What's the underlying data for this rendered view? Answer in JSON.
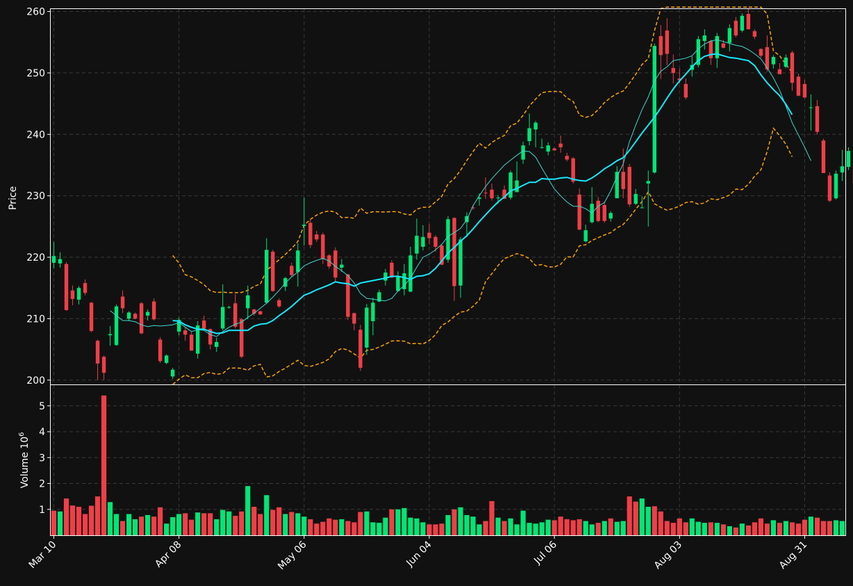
{
  "chart_data": [
    {
      "type": "candlestick",
      "panel": "price",
      "ylabel": "Price",
      "ylim": [
        199.3,
        260.4
      ],
      "yticks": [
        200,
        210,
        220,
        230,
        240,
        250,
        260
      ],
      "xlim": [
        -0.5,
        126.5
      ],
      "xtick_labels": [
        "Mar 10",
        "Apr 08",
        "May 06",
        "Jun 04",
        "Jul 06",
        "Aug 03",
        "Aug 31"
      ],
      "xtick_index": [
        0,
        20,
        40,
        60,
        80,
        100,
        120
      ],
      "grid": true,
      "colors": {
        "up": "#00e676",
        "down": "#ef3f48",
        "ma_fast": "#3fd9d0",
        "ma_slow": "#17e8ff",
        "bands": "#ffa500",
        "axes": "#ffffff",
        "grid": "#3a3a3a",
        "background": "#111111"
      },
      "candles": [
        [
          219.1,
          220.2,
          218.2,
          222.5
        ],
        [
          219.0,
          219.7,
          218.3,
          220.8
        ],
        [
          218.9,
          211.4,
          211.3,
          219.2
        ],
        [
          214.6,
          213.2,
          212.2,
          215.4
        ],
        [
          213.1,
          215.0,
          212.3,
          215.3
        ],
        [
          215.8,
          214.2,
          213.8,
          216.4
        ],
        [
          212.6,
          208.0,
          207.8,
          212.7
        ],
        [
          206.4,
          202.7,
          200.0,
          206.6
        ],
        [
          203.8,
          201.2,
          200.0,
          204.0
        ],
        [
          207.3,
          207.5,
          205.6,
          208.8
        ],
        [
          205.7,
          212.0,
          205.6,
          212.3
        ],
        [
          213.6,
          211.7,
          210.9,
          214.6
        ],
        [
          210.0,
          211.0,
          209.6,
          211.2
        ],
        [
          210.8,
          210.0,
          209.9,
          211.0
        ],
        [
          212.5,
          207.6,
          207.5,
          212.7
        ],
        [
          210.5,
          211.1,
          209.7,
          211.5
        ],
        [
          212.8,
          209.9,
          209.7,
          213.3
        ],
        [
          206.6,
          203.1,
          202.8,
          207.0
        ],
        [
          202.8,
          204.0,
          202.6,
          204.2
        ],
        [
          200.6,
          201.7,
          200.2,
          202.0
        ],
        [
          207.9,
          209.8,
          207.3,
          210.2
        ],
        [
          208.1,
          207.4,
          206.4,
          208.5
        ],
        [
          207.4,
          204.8,
          204.8,
          207.9
        ],
        [
          204.3,
          208.9,
          203.5,
          209.6
        ],
        [
          209.7,
          208.4,
          208.1,
          210.5
        ],
        [
          208.3,
          205.8,
          205.0,
          208.4
        ],
        [
          205.4,
          206.2,
          204.6,
          206.9
        ],
        [
          208.4,
          211.9,
          208.1,
          215.6
        ],
        [
          211.9,
          211.9,
          211.6,
          212.1
        ],
        [
          212.5,
          208.7,
          208.4,
          214.0
        ],
        [
          209.9,
          203.8,
          203.6,
          210.1
        ],
        [
          211.7,
          213.8,
          209.9,
          215.4
        ],
        [
          211.5,
          210.8,
          210.5,
          211.6
        ],
        [
          211.2,
          210.7,
          210.6,
          211.3
        ],
        [
          212.6,
          221.2,
          212.4,
          223.1
        ],
        [
          220.9,
          214.5,
          214.4,
          221.2
        ],
        [
          213.0,
          212.0,
          211.8,
          213.3
        ],
        [
          215.2,
          216.6,
          214.5,
          216.8
        ],
        [
          218.6,
          217.1,
          216.9,
          219.1
        ],
        [
          217.6,
          221.1,
          215.2,
          222.3
        ],
        [
          225.1,
          225.3,
          221.9,
          229.7
        ],
        [
          225.6,
          222.0,
          221.5,
          226.3
        ],
        [
          223.7,
          222.9,
          222.5,
          224.3
        ],
        [
          223.7,
          219.7,
          218.9,
          224.0
        ],
        [
          220.3,
          218.5,
          218.1,
          220.5
        ],
        [
          221.1,
          216.7,
          216.0,
          221.6
        ],
        [
          218.3,
          218.8,
          217.6,
          219.7
        ],
        [
          217.2,
          210.3,
          209.8,
          217.3
        ],
        [
          210.9,
          209.2,
          208.1,
          211.0
        ],
        [
          208.2,
          202.0,
          201.5,
          209.0
        ],
        [
          205.3,
          211.8,
          204.1,
          212.4
        ],
        [
          209.6,
          212.6,
          207.3,
          213.4
        ],
        [
          212.8,
          214.3,
          212.7,
          214.7
        ],
        [
          216.2,
          217.5,
          215.4,
          218.1
        ],
        [
          219.1,
          216.7,
          216.6,
          219.5
        ],
        [
          214.5,
          216.9,
          214.4,
          217.7
        ],
        [
          214.8,
          217.4,
          213.8,
          218.9
        ],
        [
          214.4,
          220.3,
          214.3,
          221.7
        ],
        [
          220.6,
          223.5,
          219.6,
          226.3
        ],
        [
          221.7,
          223.3,
          221.1,
          225.2
        ],
        [
          224.0,
          223.1,
          222.1,
          225.4
        ],
        [
          223.3,
          221.7,
          220.9,
          223.6
        ],
        [
          221.9,
          218.8,
          218.7,
          222.2
        ],
        [
          219.6,
          226.2,
          219.1,
          226.7
        ],
        [
          226.4,
          215.3,
          212.9,
          226.5
        ],
        [
          215.4,
          222.9,
          213.4,
          223.3
        ],
        [
          225.7,
          226.7,
          223.3,
          227.3
        ],
        [
          228.1,
          228.0,
          227.7,
          228.5
        ],
        [
          229.5,
          229.7,
          228.4,
          230.4
        ],
        [
          230.5,
          230.4,
          229.5,
          233.0
        ],
        [
          231.0,
          229.6,
          229.2,
          232.0
        ],
        [
          229.6,
          229.7,
          228.7,
          230.1
        ],
        [
          231.0,
          229.5,
          229.5,
          231.7
        ],
        [
          229.7,
          233.8,
          229.4,
          234.1
        ],
        [
          230.6,
          232.5,
          230.6,
          235.6
        ],
        [
          235.9,
          238.2,
          235.2,
          238.8
        ],
        [
          238.9,
          241.0,
          238.2,
          243.4
        ],
        [
          240.8,
          241.9,
          237.9,
          242.2
        ],
        [
          237.8,
          237.9,
          237.7,
          239.3
        ],
        [
          237.2,
          238.2,
          236.6,
          238.7
        ],
        [
          237.7,
          237.4,
          237.3,
          237.9
        ],
        [
          238.5,
          237.9,
          237.0,
          239.8
        ],
        [
          236.5,
          235.9,
          235.6,
          237.0
        ],
        [
          236.1,
          232.3,
          232.0,
          236.3
        ],
        [
          230.2,
          224.5,
          224.4,
          231.2
        ],
        [
          222.6,
          224.4,
          222.4,
          225.3
        ],
        [
          225.7,
          228.7,
          225.5,
          231.4
        ],
        [
          229.2,
          225.9,
          225.7,
          229.8
        ],
        [
          228.5,
          225.9,
          225.6,
          229.1
        ],
        [
          226.3,
          227.2,
          225.8,
          227.5
        ],
        [
          229.6,
          233.9,
          229.6,
          234.8
        ],
        [
          233.9,
          231.1,
          229.6,
          237.7
        ],
        [
          234.7,
          228.6,
          228.2,
          235.2
        ],
        [
          228.7,
          230.3,
          228.5,
          231.1
        ],
        [
          228.1,
          228.1,
          228.1,
          229.9
        ],
        [
          232.0,
          232.4,
          225.0,
          234.1
        ],
        [
          233.8,
          254.4,
          233.6,
          254.8
        ],
        [
          256.0,
          252.9,
          249.0,
          257.8
        ],
        [
          256.9,
          253.1,
          251.3,
          258.9
        ],
        [
          250.8,
          250.0,
          248.3,
          253.0
        ],
        [
          249.1,
          248.8,
          248.3,
          250.7
        ],
        [
          248.2,
          246.0,
          245.7,
          249.1
        ],
        [
          250.5,
          251.3,
          249.4,
          252.7
        ],
        [
          251.3,
          255.5,
          250.9,
          256.0
        ],
        [
          255.2,
          256.1,
          253.8,
          257.1
        ],
        [
          255.2,
          252.4,
          251.3,
          255.4
        ],
        [
          252.4,
          256.0,
          250.8,
          256.5
        ],
        [
          254.8,
          254.1,
          254.0,
          255.4
        ],
        [
          254.9,
          257.3,
          253.5,
          257.9
        ],
        [
          258.5,
          256.1,
          255.8,
          259.1
        ],
        [
          256.9,
          259.3,
          256.6,
          259.7
        ],
        [
          259.6,
          257.1,
          257.1,
          261.7
        ],
        [
          256.8,
          255.9,
          255.5,
          257.1
        ],
        [
          253.9,
          252.8,
          252.5,
          254.0
        ],
        [
          254.2,
          250.6,
          250.2,
          256.1
        ],
        [
          251.4,
          252.6,
          250.7,
          252.9
        ],
        [
          250.6,
          249.8,
          249.8,
          251.6
        ],
        [
          251.0,
          252.5,
          250.8,
          253.0
        ],
        [
          253.3,
          248.4,
          247.1,
          253.6
        ],
        [
          249.4,
          246.3,
          246.2,
          249.9
        ],
        [
          248.2,
          246.0,
          245.9,
          248.8
        ],
        [
          244.3,
          244.4,
          240.6,
          246.5
        ],
        [
          244.6,
          240.4,
          240.0,
          245.6
        ],
        [
          239.0,
          233.7,
          233.7,
          239.3
        ],
        [
          233.3,
          229.2,
          229.0,
          233.8
        ],
        [
          229.6,
          233.6,
          229.4,
          234.1
        ],
        [
          233.8,
          234.8,
          232.4,
          237.5
        ],
        [
          234.7,
          237.3,
          234.2,
          237.9
        ],
        [
          234.8,
          232.0,
          231.0,
          235.6
        ],
        [
          231.7,
          227.2,
          227.0,
          232.3
        ]
      ],
      "ma_fast": [
        null,
        null,
        null,
        null,
        null,
        null,
        null,
        null,
        null,
        211.3,
        210.5,
        209.7,
        209.7,
        209.5,
        209.0,
        208.7,
        208.9,
        208.8,
        208.9,
        209.0,
        209.4,
        208.6,
        207.9,
        208.2,
        208.1,
        207.4,
        207.1,
        207.9,
        208.6,
        209.1,
        209.4,
        210.2,
        210.9,
        211.7,
        212.5,
        213.5,
        214.6,
        215.8,
        216.8,
        217.6,
        218.6,
        219.1,
        219.5,
        219.8,
        219.4,
        218.5,
        217.8,
        217.0,
        215.8,
        214.1,
        213.3,
        213.2,
        213.0,
        212.9,
        213.3,
        214.5,
        215.4,
        216.6,
        218.4,
        220.0,
        220.5,
        221.2,
        222.1,
        223.4,
        224.0,
        224.7,
        226.1,
        228.4,
        230.0,
        231.5,
        232.8,
        233.9,
        235.0,
        235.8,
        236.6,
        237.3,
        237.2,
        236.3,
        234.5,
        232.8,
        231.1,
        230.0,
        229.0,
        228.3,
        228.3,
        227.9,
        227.2,
        228.3,
        228.9,
        230.8,
        233.1,
        235.2,
        238.8,
        241.5,
        244.0,
        246.1,
        248.7,
        250.3,
        251.0,
        252.0,
        252.2,
        252.4,
        252.8,
        253.9,
        254.7,
        255.2,
        255.4,
        255.1,
        254.8,
        254.5,
        254.3,
        253.8,
        253.1,
        252.3,
        250.8,
        249.2,
        247.2,
        244.6,
        241.9,
        239.9,
        237.9,
        235.7
      ],
      "ma_slow": [
        null,
        null,
        null,
        null,
        null,
        null,
        null,
        null,
        null,
        null,
        null,
        null,
        null,
        null,
        null,
        null,
        null,
        null,
        null,
        209.7,
        209.6,
        209.0,
        208.6,
        208.3,
        208.3,
        207.9,
        207.6,
        207.7,
        208.1,
        208.1,
        208.1,
        208.1,
        208.8,
        209.1,
        209.2,
        209.7,
        210.5,
        211.2,
        212.0,
        212.9,
        213.8,
        214.2,
        214.7,
        215.1,
        215.5,
        216.0,
        215.8,
        215.7,
        215.3,
        215.8,
        216.0,
        216.2,
        216.4,
        216.6,
        216.9,
        216.9,
        216.7,
        216.4,
        216.9,
        217.0,
        217.3,
        218.2,
        219.4,
        220.7,
        221.6,
        222.6,
        223.5,
        224.6,
        225.8,
        226.9,
        228.0,
        229.0,
        229.8,
        230.8,
        231.2,
        231.7,
        232.2,
        232.2,
        232.8,
        232.7,
        232.7,
        232.9,
        233.0,
        232.7,
        232.5,
        232.4,
        232.9,
        233.6,
        234.4,
        235.0,
        235.7,
        236.2,
        237.4,
        238.8,
        240.2,
        241.5,
        242.8,
        244.3,
        245.9,
        247.4,
        248.7,
        249.8,
        251.0,
        252.0,
        252.7,
        253.0,
        253.1,
        252.8,
        252.5,
        252.4,
        252.2,
        252.0,
        251.2,
        249.7,
        248.4,
        247.3,
        246.3,
        244.9,
        243.2
      ]
    },
    {
      "type": "bar",
      "panel": "volume",
      "ylabel": "Volume  10^6",
      "ylim": [
        0,
        5.8
      ],
      "yticks": [
        1,
        2,
        3,
        4,
        5
      ],
      "values": [
        0.95,
        0.92,
        1.42,
        1.15,
        1.1,
        0.82,
        1.14,
        1.5,
        5.4,
        1.28,
        0.82,
        0.55,
        0.82,
        0.62,
        0.72,
        0.78,
        0.72,
        1.08,
        0.45,
        0.7,
        0.82,
        0.85,
        0.6,
        0.88,
        0.85,
        0.85,
        0.62,
        0.98,
        0.92,
        0.75,
        0.92,
        1.9,
        1.1,
        0.82,
        1.55,
        0.98,
        1.08,
        0.82,
        0.9,
        0.85,
        0.72,
        0.62,
        0.45,
        0.52,
        0.65,
        0.6,
        0.62,
        0.55,
        0.5,
        0.9,
        0.92,
        0.5,
        0.48,
        0.68,
        1.0,
        1.0,
        1.05,
        0.68,
        0.65,
        0.5,
        0.42,
        0.42,
        0.45,
        0.78,
        1.0,
        1.08,
        0.78,
        0.72,
        0.42,
        0.55,
        1.32,
        0.68,
        0.55,
        0.65,
        0.42,
        0.95,
        0.48,
        0.45,
        0.5,
        0.6,
        0.58,
        0.72,
        0.62,
        0.58,
        0.62,
        0.55,
        0.42,
        0.48,
        0.55,
        0.65,
        0.52,
        0.55,
        1.5,
        1.3,
        1.42,
        1.1,
        1.12,
        0.92,
        0.55,
        0.48,
        0.65,
        0.5,
        0.65,
        0.52,
        0.48,
        0.5,
        0.48,
        0.42,
        0.35,
        0.3,
        0.45,
        0.38,
        0.5,
        0.65,
        0.45,
        0.58,
        0.48,
        0.55,
        0.5,
        0.45,
        0.6,
        0.72,
        0.68,
        0.55,
        0.55,
        0.58,
        0.55
      ],
      "up": [
        false,
        true,
        false,
        false,
        false,
        false,
        false,
        false,
        false,
        true,
        true,
        false,
        true,
        true,
        false,
        true,
        false,
        false,
        true,
        true,
        true,
        false,
        false,
        true,
        false,
        false,
        true,
        true,
        true,
        false,
        false,
        true,
        false,
        false,
        true,
        false,
        false,
        true,
        false,
        true,
        true,
        false,
        false,
        false,
        false,
        false,
        true,
        false,
        false,
        false,
        true,
        true,
        true,
        true,
        false,
        true,
        true,
        true,
        true,
        true,
        false,
        false,
        false,
        true,
        false,
        true,
        true,
        true,
        true,
        false,
        false,
        true,
        false,
        true,
        true,
        true,
        true,
        true,
        true,
        true,
        false,
        false,
        false,
        false,
        false,
        true,
        true,
        false,
        true,
        false,
        true,
        true,
        false,
        false,
        true,
        true,
        false,
        false,
        false,
        false,
        false,
        false,
        true,
        true,
        true,
        false,
        true,
        false,
        true,
        false,
        true,
        false,
        false,
        false,
        false,
        true,
        false,
        true,
        false,
        false,
        false,
        true,
        false,
        false,
        false,
        true,
        true,
        true,
        false,
        false
      ]
    }
  ]
}
